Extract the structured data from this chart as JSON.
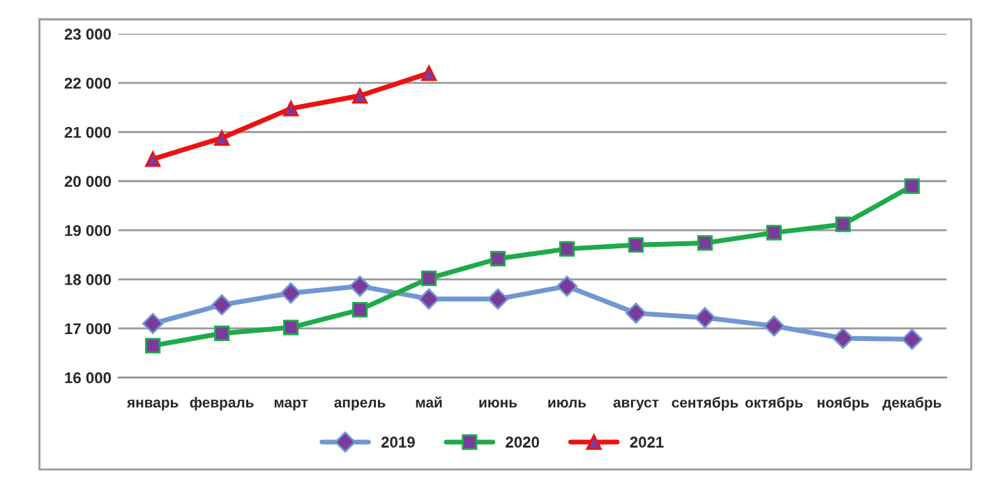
{
  "chart_data": {
    "type": "line",
    "categories": [
      "январь",
      "февраль",
      "март",
      "апрель",
      "май",
      "июнь",
      "июль",
      "август",
      "сентябрь",
      "октябрь",
      "ноябрь",
      "декабрь"
    ],
    "series": [
      {
        "name": "2019",
        "color": "#6f97d2",
        "marker": "diamond",
        "values": [
          17100,
          17480,
          17720,
          17860,
          17600,
          17600,
          17860,
          17310,
          17220,
          17050,
          16800,
          16780
        ]
      },
      {
        "name": "2020",
        "color": "#1faa4a",
        "marker": "square",
        "values": [
          16650,
          16900,
          17020,
          17380,
          18020,
          18420,
          18620,
          18700,
          18740,
          18950,
          19120,
          19900
        ]
      },
      {
        "name": "2021",
        "color": "#ee1111",
        "marker": "triangle",
        "values": [
          20450,
          20880,
          21480,
          21740,
          22200,
          null,
          null,
          null,
          null,
          null,
          null,
          null
        ]
      }
    ],
    "ylim": [
      16000,
      23000
    ],
    "yticks": [
      {
        "value": 16000,
        "label": "16 000"
      },
      {
        "value": 17000,
        "label": "17 000"
      },
      {
        "value": 18000,
        "label": "18 000"
      },
      {
        "value": 19000,
        "label": "19 000"
      },
      {
        "value": 20000,
        "label": "20 000"
      },
      {
        "value": 21000,
        "label": "21 000"
      },
      {
        "value": 22000,
        "label": "22 000"
      },
      {
        "value": 23000,
        "label": "23 000"
      }
    ],
    "grid": "y",
    "legend": "bottom",
    "line_style": "solid"
  }
}
